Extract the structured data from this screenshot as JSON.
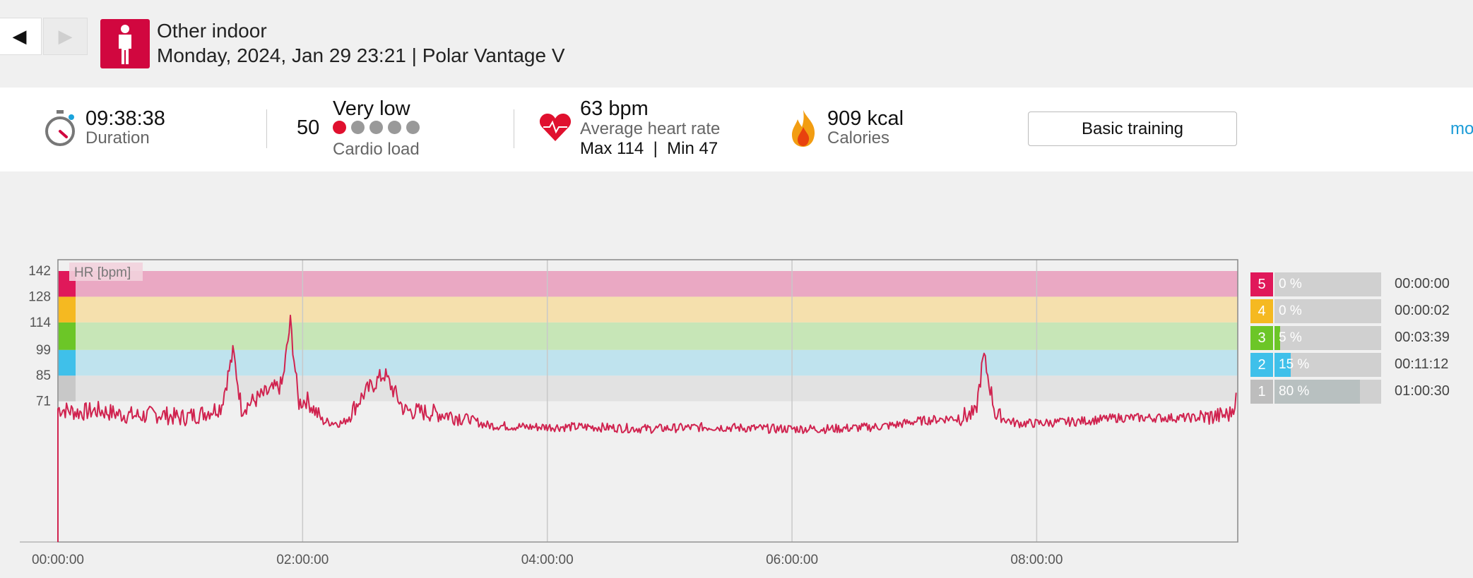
{
  "header": {
    "prev_label": "◀",
    "next_label": "▶",
    "sport": "Other indoor",
    "subtitle": "Monday, 2024, Jan 29 23:21 | Polar Vantage V"
  },
  "summary": {
    "duration": {
      "value": "09:38:38",
      "label": "Duration"
    },
    "cardio_load": {
      "value": "50",
      "level": "Very low",
      "label": "Cardio load",
      "dots_on": 1,
      "dots_total": 5
    },
    "heart_rate": {
      "value": "63 bpm",
      "label": "Average heart rate",
      "max_min": "Max 114  |  Min 47"
    },
    "calories": {
      "value": "909 kcal",
      "label": "Calories"
    },
    "button_label": "Basic training",
    "more_label": "more"
  },
  "colors": {
    "brand": "#d1073f",
    "zone5": "#e0185a",
    "zone4": "#f5b921",
    "zone3": "#6cc627",
    "zone2": "#3fc0ea",
    "zone1": "#c8c8c8",
    "hr_line": "#d0234f"
  },
  "chart_data": {
    "type": "line",
    "legend": "HR [bpm]",
    "y_ticks": [
      "142",
      "128",
      "114",
      "99",
      "85",
      "71"
    ],
    "x_ticks": [
      "00:00:00",
      "02:00:00",
      "04:00:00",
      "06:00:00",
      "08:00:00"
    ],
    "x_range_minutes": [
      0,
      578.6
    ],
    "zone_bands_bpm": [
      [
        71,
        85
      ],
      [
        85,
        99
      ],
      [
        99,
        114
      ],
      [
        114,
        128
      ],
      [
        128,
        142
      ]
    ],
    "series": [
      {
        "x_minutes": [
          0,
          10,
          20,
          30,
          40,
          50,
          60,
          70,
          80,
          86,
          90,
          100,
          110,
          114,
          118,
          122,
          130,
          140,
          150,
          160,
          170,
          180,
          190,
          200,
          210,
          230,
          260,
          290,
          320,
          350,
          360,
          380,
          400,
          410,
          420,
          440,
          450,
          454,
          460,
          470,
          480,
          500,
          520,
          540,
          560,
          570,
          575,
          578
        ],
        "hr": [
          67,
          65,
          66,
          64,
          63,
          64,
          62,
          64,
          68,
          98,
          67,
          74,
          80,
          114,
          70,
          72,
          60,
          59,
          75,
          86,
          66,
          65,
          64,
          62,
          58,
          57,
          57,
          56,
          57,
          56,
          56,
          56,
          57,
          58,
          60,
          62,
          64,
          96,
          63,
          59,
          59,
          60,
          62,
          62,
          62,
          63,
          64,
          73
        ]
      }
    ]
  },
  "zones": [
    {
      "num": "5",
      "pct": "0 %",
      "time": "00:00:00",
      "fill": 0
    },
    {
      "num": "4",
      "pct": "0 %",
      "time": "00:00:02",
      "fill": 0
    },
    {
      "num": "3",
      "pct": "5 %",
      "time": "00:03:39",
      "fill": 0.05
    },
    {
      "num": "2",
      "pct": "15 %",
      "time": "00:11:12",
      "fill": 0.15
    },
    {
      "num": "1",
      "pct": "80 %",
      "time": "01:00:30",
      "fill": 0.8
    }
  ]
}
